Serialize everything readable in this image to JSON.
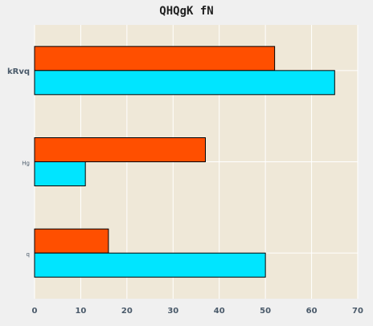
{
  "chart_data": {
    "type": "bar",
    "orientation": "horizontal",
    "title": "QHQgK  fN",
    "categories": [
      "kRvq",
      "Hg",
      "q"
    ],
    "series": [
      {
        "color": "#ff4f00",
        "values": [
          52,
          37,
          16
        ]
      },
      {
        "color": "#00e5ff",
        "values": [
          65,
          11,
          50
        ]
      }
    ],
    "xlim": [
      0,
      70
    ],
    "xticks": [
      0,
      10,
      20,
      30,
      40,
      50,
      60,
      70
    ],
    "grid": true,
    "colors": {
      "plot_bg": "#efe8d8",
      "page_bg": "#f0f0f0",
      "grid": "#ffffff"
    }
  }
}
